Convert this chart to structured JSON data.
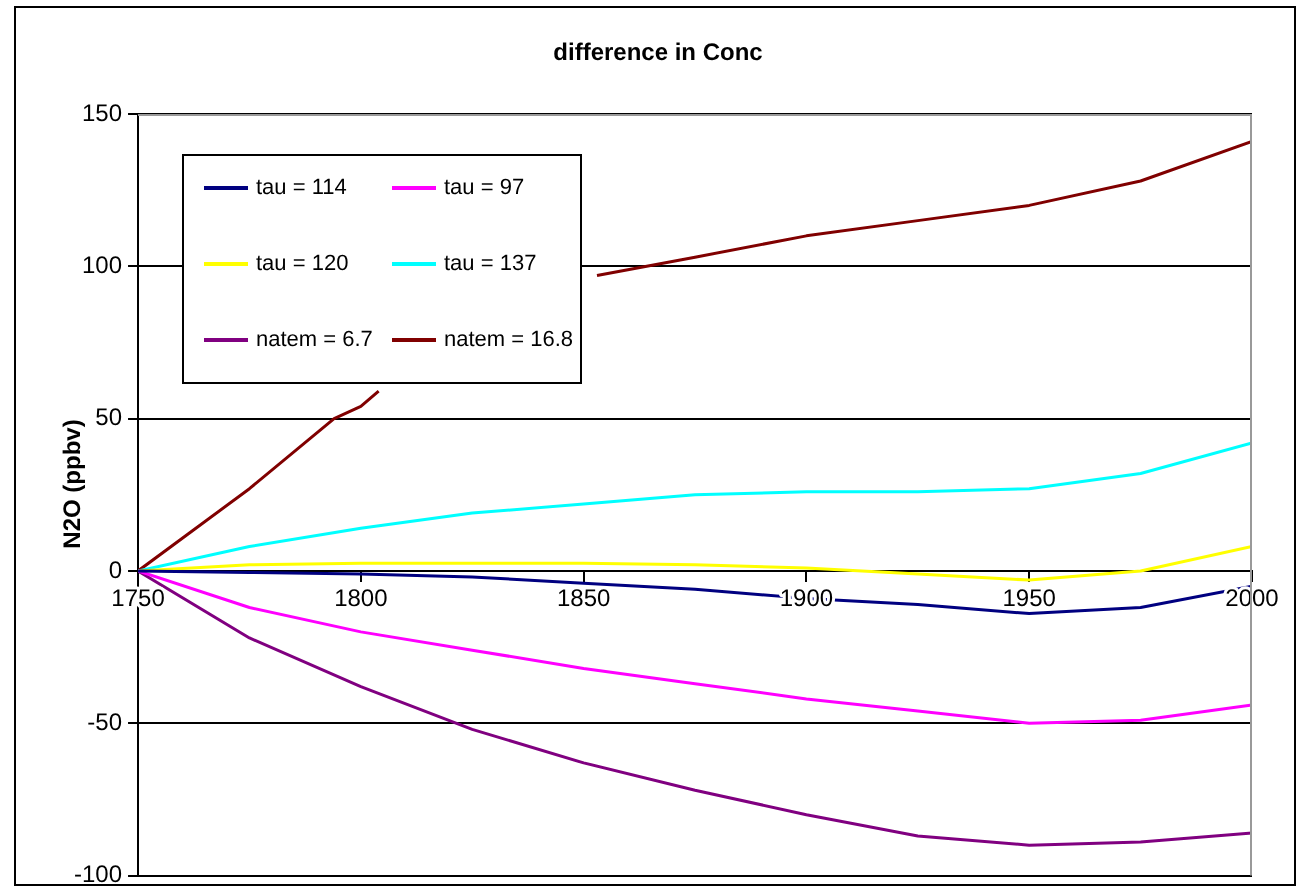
{
  "chart_data": {
    "type": "line",
    "title": "difference in Conc",
    "ylabel": "N2O (ppbv)",
    "xlim": [
      1750,
      2000
    ],
    "xticks": [
      1750,
      1800,
      1850,
      1900,
      1950,
      2000
    ],
    "ylim": [
      -100,
      150
    ],
    "yticks": [
      -100,
      -50,
      0,
      50,
      100,
      150
    ],
    "grid": "y",
    "legend": "top left",
    "marker": "none",
    "line_style": "solid",
    "x": [
      1750,
      1775,
      1800,
      1825,
      1850,
      1875,
      1900,
      1925,
      1950,
      1975,
      2000
    ],
    "series": [
      {
        "name": "tau = 114",
        "color": "#000080",
        "values": [
          0,
          -0.5,
          -1,
          -2,
          -4,
          -6,
          -9,
          -11,
          -14,
          -12,
          -5
        ]
      },
      {
        "name": "tau = 97",
        "color": "#ff00ff",
        "values": [
          0,
          -12,
          -20,
          -26,
          -32,
          -37,
          -42,
          -46,
          -50,
          -49,
          -44
        ]
      },
      {
        "name": "tau = 120",
        "color": "#ffff00",
        "values": [
          0,
          2,
          2.5,
          2.5,
          2.5,
          2,
          1,
          -1,
          -3,
          0,
          8
        ]
      },
      {
        "name": "tau = 137",
        "color": "#00ffff",
        "values": [
          0,
          8,
          14,
          19,
          22,
          25,
          26,
          26,
          27,
          32,
          42
        ]
      },
      {
        "name": "natem = 6.7",
        "color": "#800080",
        "values": [
          0,
          -22,
          -38,
          -52,
          -63,
          -72,
          -80,
          -87,
          -90,
          -89,
          -86
        ]
      },
      {
        "name": "natem = 16.8",
        "color": "#800000",
        "x": [
          1750,
          1775,
          1794,
          1800,
          1804,
          1826,
          1853,
          1875,
          1900,
          1925,
          1950,
          1975,
          2000
        ],
        "values": [
          0,
          27,
          50,
          54,
          59,
          null,
          97,
          103,
          110,
          115,
          120,
          128,
          141
        ]
      }
    ]
  }
}
